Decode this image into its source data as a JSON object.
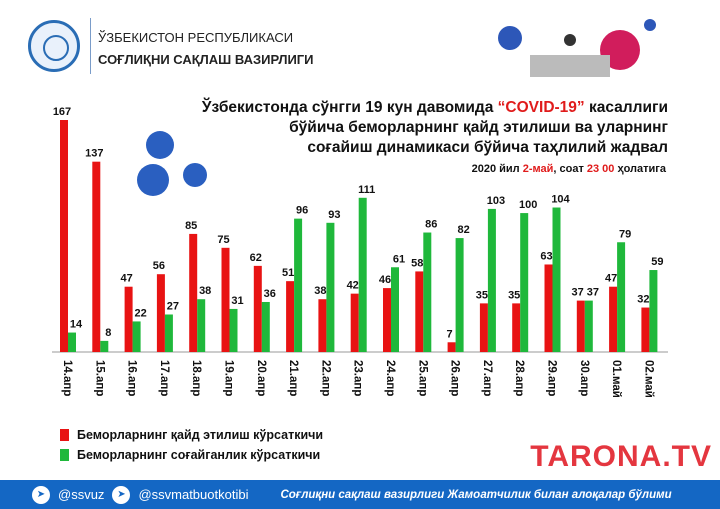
{
  "header": {
    "org_line1": "ЎЗБЕКИСТОН РЕСПУБЛИКАСИ",
    "org_line2": "СОҒЛИҚНИ САҚЛАШ ВАЗИРЛИГИ"
  },
  "chart_data": {
    "type": "bar",
    "title_parts": [
      "Ўзбекистонда сўнгги 19 кун давомида ",
      "“COVID-19”",
      " касаллиги",
      "бўйича беморларнинг қайд этилиши ва уларнинг",
      "соғайиш  динамикаси бўйича таҳлилий жадвал"
    ],
    "subtitle_parts": [
      "2020 йил ",
      "2-май",
      ", соат ",
      "23 00",
      " ҳолатига"
    ],
    "categories": [
      "14.апр",
      "15.апр",
      "16.апр",
      "17.апр",
      "18.апр",
      "19.апр",
      "20.апр",
      "21.апр",
      "22.апр",
      "23.апр",
      "24.апр",
      "25.апр",
      "26.апр",
      "27.апр",
      "28.апр",
      "29.апр",
      "30.апр",
      "01.май",
      "02.май"
    ],
    "series": [
      {
        "name": "Беморларнинг қайд этилиш кўрсаткичи",
        "color": "#e81313",
        "values": [
          167,
          137,
          47,
          56,
          85,
          75,
          62,
          51,
          38,
          42,
          46,
          58,
          7,
          35,
          35,
          63,
          37,
          47,
          32
        ]
      },
      {
        "name": "Беморларнинг соғайганлик кўрсаткичи",
        "color": "#1fb83b",
        "values": [
          14,
          8,
          22,
          27,
          38,
          31,
          36,
          96,
          93,
          111,
          61,
          86,
          82,
          103,
          100,
          104,
          37,
          79,
          59
        ]
      }
    ],
    "ylim": [
      0,
      167
    ],
    "grid": false,
    "legend": "bottom-left"
  },
  "footer": {
    "handle1": "@ssvuz",
    "handle2": "@ssvmatbuotkotibi",
    "note": "Соғлиқни сақлаш вазирлиги Жамоатчилик билан алоқалар бўлими",
    "icon": "telegram-icon"
  },
  "watermark": "TARONA.TV"
}
